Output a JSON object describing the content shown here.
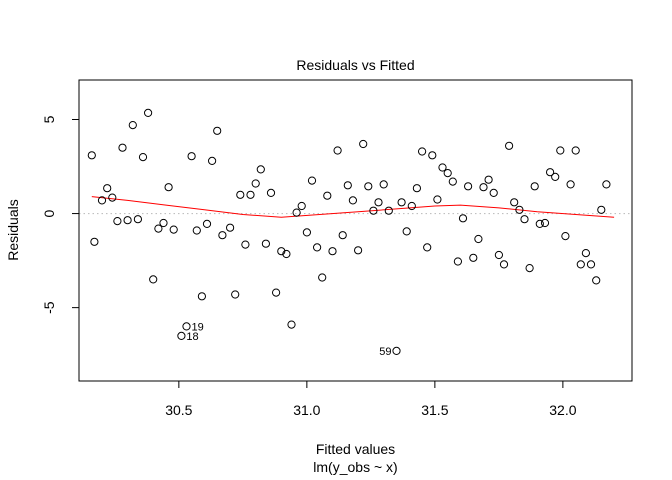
{
  "chart_data": {
    "type": "scatter",
    "title": "Residuals vs Fitted",
    "xlabel": "Fitted values",
    "subtitle": "lm(y_obs ~ x)",
    "ylabel": "Residuals",
    "xlim": [
      30.11,
      32.27
    ],
    "ylim": [
      -8.9,
      7.1
    ],
    "xticks": [
      30.5,
      31.0,
      31.5,
      32.0
    ],
    "xtick_labels": [
      "30.5",
      "31.0",
      "31.5",
      "32.0"
    ],
    "yticks": [
      -5,
      0,
      5
    ],
    "ytick_labels": [
      "-5",
      "0",
      "5"
    ],
    "colors": {
      "points": "#000000",
      "smooth": "#ff0000",
      "zero_line": "#c0c0c0"
    },
    "points": [
      [
        30.16,
        3.1
      ],
      [
        30.17,
        -1.5
      ],
      [
        30.2,
        0.7
      ],
      [
        30.22,
        1.35
      ],
      [
        30.24,
        0.85
      ],
      [
        30.26,
        -0.4
      ],
      [
        30.28,
        3.5
      ],
      [
        30.3,
        -0.35
      ],
      [
        30.32,
        4.7
      ],
      [
        30.34,
        -0.3
      ],
      [
        30.36,
        3.0
      ],
      [
        30.38,
        5.35
      ],
      [
        30.4,
        -3.5
      ],
      [
        30.42,
        -0.8
      ],
      [
        30.44,
        -0.5
      ],
      [
        30.46,
        1.4
      ],
      [
        30.48,
        -0.85
      ],
      [
        30.53,
        -6.0
      ],
      [
        30.51,
        -6.5
      ],
      [
        30.55,
        3.05
      ],
      [
        30.57,
        -0.9
      ],
      [
        30.59,
        -4.4
      ],
      [
        30.61,
        -0.55
      ],
      [
        30.63,
        2.8
      ],
      [
        30.65,
        4.4
      ],
      [
        30.67,
        -1.15
      ],
      [
        30.7,
        -0.75
      ],
      [
        30.72,
        -4.3
      ],
      [
        30.74,
        1.0
      ],
      [
        30.76,
        -1.65
      ],
      [
        30.78,
        1.0
      ],
      [
        30.8,
        1.6
      ],
      [
        30.82,
        2.35
      ],
      [
        30.84,
        -1.6
      ],
      [
        30.86,
        1.1
      ],
      [
        30.88,
        -4.2
      ],
      [
        30.9,
        -2.0
      ],
      [
        30.92,
        -2.15
      ],
      [
        30.94,
        -5.9
      ],
      [
        30.96,
        0.05
      ],
      [
        30.98,
        0.4
      ],
      [
        31.0,
        -1.0
      ],
      [
        31.02,
        1.75
      ],
      [
        31.04,
        -1.8
      ],
      [
        31.06,
        -3.4
      ],
      [
        31.08,
        0.95
      ],
      [
        31.1,
        -2.0
      ],
      [
        31.12,
        3.35
      ],
      [
        31.14,
        -1.15
      ],
      [
        31.16,
        1.5
      ],
      [
        31.18,
        0.7
      ],
      [
        31.2,
        -1.95
      ],
      [
        31.22,
        3.7
      ],
      [
        31.24,
        1.45
      ],
      [
        31.26,
        0.15
      ],
      [
        31.28,
        0.6
      ],
      [
        31.3,
        1.55
      ],
      [
        31.32,
        0.15
      ],
      [
        31.35,
        -7.3
      ],
      [
        31.37,
        0.6
      ],
      [
        31.39,
        -0.95
      ],
      [
        31.41,
        0.4
      ],
      [
        31.43,
        1.35
      ],
      [
        31.45,
        3.3
      ],
      [
        31.47,
        -1.8
      ],
      [
        31.49,
        3.1
      ],
      [
        31.51,
        0.75
      ],
      [
        31.53,
        2.45
      ],
      [
        31.55,
        2.15
      ],
      [
        31.57,
        1.7
      ],
      [
        31.59,
        -2.55
      ],
      [
        31.61,
        -0.25
      ],
      [
        31.63,
        1.45
      ],
      [
        31.65,
        -2.35
      ],
      [
        31.67,
        -1.35
      ],
      [
        31.69,
        1.4
      ],
      [
        31.71,
        1.8
      ],
      [
        31.73,
        1.1
      ],
      [
        31.75,
        -2.2
      ],
      [
        31.77,
        -2.7
      ],
      [
        31.79,
        3.6
      ],
      [
        31.81,
        0.6
      ],
      [
        31.83,
        0.2
      ],
      [
        31.85,
        -0.3
      ],
      [
        31.87,
        -2.9
      ],
      [
        31.89,
        1.45
      ],
      [
        31.91,
        -0.55
      ],
      [
        31.93,
        -0.5
      ],
      [
        31.95,
        2.2
      ],
      [
        31.97,
        1.95
      ],
      [
        31.99,
        3.35
      ],
      [
        32.01,
        -1.2
      ],
      [
        32.03,
        1.55
      ],
      [
        32.05,
        3.35
      ],
      [
        32.07,
        -2.7
      ],
      [
        32.09,
        -2.1
      ],
      [
        32.11,
        -2.7
      ],
      [
        32.13,
        -3.55
      ],
      [
        32.15,
        0.2
      ],
      [
        32.17,
        1.55
      ]
    ],
    "labeled_points": [
      {
        "label": "19",
        "x": 30.53,
        "y": -6.0
      },
      {
        "label": "18",
        "x": 30.51,
        "y": -6.5
      },
      {
        "label": "59",
        "x": 31.35,
        "y": -7.3
      }
    ],
    "smooth_line": [
      [
        30.16,
        0.9
      ],
      [
        30.3,
        0.7
      ],
      [
        30.45,
        0.45
      ],
      [
        30.6,
        0.2
      ],
      [
        30.75,
        -0.05
      ],
      [
        30.9,
        -0.2
      ],
      [
        31.05,
        -0.05
      ],
      [
        31.2,
        0.1
      ],
      [
        31.35,
        0.25
      ],
      [
        31.5,
        0.4
      ],
      [
        31.6,
        0.45
      ],
      [
        31.75,
        0.3
      ],
      [
        31.9,
        0.1
      ],
      [
        32.05,
        -0.05
      ],
      [
        32.2,
        -0.2
      ]
    ]
  }
}
